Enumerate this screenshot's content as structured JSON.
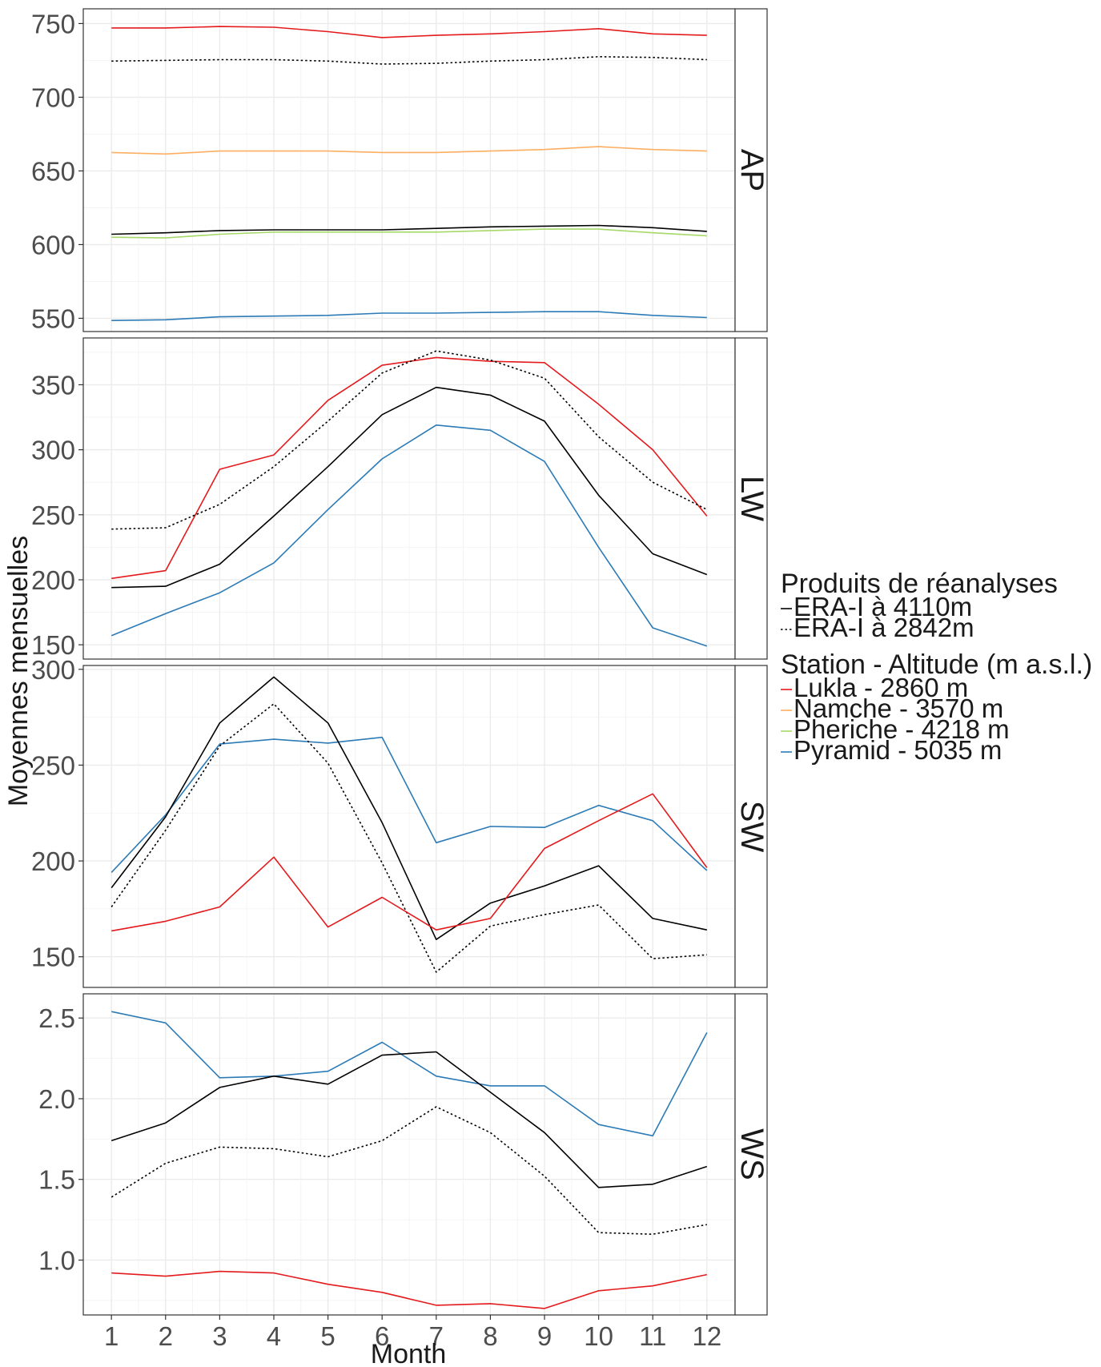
{
  "chart_data": {
    "type": "line",
    "xlabel": "Month",
    "ylabel": "Moyennes mensuelles",
    "x": [
      1,
      2,
      3,
      4,
      5,
      6,
      7,
      8,
      9,
      10,
      11,
      12
    ],
    "legend": {
      "placement": "right",
      "groups": [
        {
          "title": "Produits de réanalyses",
          "entries": [
            {
              "label": "ERA-I à 4110m",
              "series": "era_4110",
              "color": "#000000",
              "dash": "solid"
            },
            {
              "label": "ERA-I à 2842m",
              "series": "era_2842",
              "color": "#000000",
              "dash": "dotted"
            }
          ]
        },
        {
          "title": "Station - Altitude (m a.s.l.)",
          "entries": [
            {
              "label": "Lukla - 2860 m",
              "series": "lukla",
              "color": "#e41a1c",
              "dash": "solid"
            },
            {
              "label": "Namche - 3570 m",
              "series": "namche",
              "color": "#fdae61",
              "dash": "solid"
            },
            {
              "label": "Pheriche - 4218 m",
              "series": "pheriche",
              "color": "#a6d96a",
              "dash": "solid"
            },
            {
              "label": "Pyramid - 5035 m",
              "series": "pyramid",
              "color": "#2c7bb6",
              "dash": "solid"
            }
          ]
        }
      ]
    },
    "panels": [
      {
        "strip": "AP",
        "ylim": [
          541,
          760
        ],
        "yticks": [
          550,
          600,
          650,
          700,
          750
        ],
        "ytick_labels": [
          "550",
          "600",
          "650",
          "700",
          "750"
        ],
        "series": [
          {
            "id": "lukla",
            "color": "#e41a1c",
            "dash": "solid",
            "values": [
              747,
              747,
              748,
              747.5,
              744.5,
              740.5,
              742,
              743,
              744.5,
              746.5,
              743,
              742
            ]
          },
          {
            "id": "era_2842",
            "color": "#000000",
            "dash": "dotted",
            "values": [
              724.5,
              725,
              725.5,
              725.5,
              724.5,
              722.5,
              723,
              724.5,
              725.5,
              727.5,
              727,
              725.5
            ]
          },
          {
            "id": "namche",
            "color": "#fdae61",
            "dash": "solid",
            "values": [
              662.5,
              661.5,
              663.5,
              663.5,
              663.5,
              662.5,
              662.5,
              663.5,
              664.5,
              666.5,
              664.5,
              663.5
            ]
          },
          {
            "id": "era_4110",
            "color": "#000000",
            "dash": "solid",
            "values": [
              607,
              608,
              609.5,
              610,
              610,
              610,
              611,
              612,
              612.5,
              613,
              611.5,
              609
            ]
          },
          {
            "id": "pheriche",
            "color": "#a6d96a",
            "dash": "solid",
            "values": [
              605,
              604.5,
              607,
              608.5,
              608.5,
              608.5,
              608.5,
              609.5,
              610.5,
              610.5,
              608,
              606
            ]
          },
          {
            "id": "pyramid",
            "color": "#2c7bb6",
            "dash": "solid",
            "values": [
              548.5,
              549,
              551,
              551.5,
              552,
              553.5,
              553.5,
              554,
              554.5,
              554.5,
              552,
              550.5
            ]
          }
        ]
      },
      {
        "strip": "LW",
        "ylim": [
          139,
          386
        ],
        "yticks": [
          150,
          200,
          250,
          300,
          350
        ],
        "ytick_labels": [
          "150",
          "200",
          "250",
          "300",
          "350"
        ],
        "series": [
          {
            "id": "lukla",
            "color": "#e41a1c",
            "dash": "solid",
            "values": [
              201,
              207,
              285,
              296,
              338,
              365,
              371,
              368,
              367,
              335,
              300,
              249
            ]
          },
          {
            "id": "era_2842",
            "color": "#000000",
            "dash": "dotted",
            "values": [
              239,
              240,
              258,
              287,
              322,
              359,
              376,
              369,
              355,
              310,
              275,
              254
            ]
          },
          {
            "id": "era_4110",
            "color": "#000000",
            "dash": "solid",
            "values": [
              194,
              195,
              212,
              249,
              287,
              327,
              348,
              342,
              322,
              265,
              220,
              204
            ]
          },
          {
            "id": "pyramid",
            "color": "#2c7bb6",
            "dash": "solid",
            "values": [
              157,
              174,
              190,
              213,
              254,
              293,
              319,
              315,
              291,
              225,
              163,
              149
            ]
          }
        ]
      },
      {
        "strip": "SW",
        "ylim": [
          134,
          302
        ],
        "yticks": [
          150,
          200,
          250,
          300
        ],
        "ytick_labels": [
          "150",
          "200",
          "250",
          "300"
        ],
        "series": [
          {
            "id": "pyramid",
            "color": "#2c7bb6",
            "dash": "solid",
            "values": [
              194,
              224,
              261,
              263.5,
              261.5,
              264.5,
              209.5,
              218,
              217.5,
              229,
              221,
              195
            ]
          },
          {
            "id": "era_4110",
            "color": "#000000",
            "dash": "solid",
            "values": [
              186,
              223,
              272,
              296,
              272,
              220,
              159,
              178,
              187,
              197.5,
              170,
              164
            ]
          },
          {
            "id": "era_2842",
            "color": "#000000",
            "dash": "dotted",
            "values": [
              176,
              216,
              260,
              282,
              251,
              199,
              142,
              166,
              172,
              177,
              149,
              151
            ]
          },
          {
            "id": "lukla",
            "color": "#e41a1c",
            "dash": "solid",
            "values": [
              163.5,
              168.5,
              176,
              202,
              165.5,
              181,
              164,
              170,
              206.5,
              221,
              235,
              196.5
            ]
          }
        ]
      },
      {
        "strip": "WS",
        "ylim": [
          0.66,
          2.65
        ],
        "yticks": [
          1.0,
          1.5,
          2.0,
          2.5
        ],
        "ytick_labels": [
          "1.0",
          "1.5",
          "2.0",
          "2.5"
        ],
        "series": [
          {
            "id": "pyramid",
            "color": "#2c7bb6",
            "dash": "solid",
            "values": [
              2.54,
              2.47,
              2.13,
              2.14,
              2.17,
              2.35,
              2.14,
              2.08,
              2.08,
              1.84,
              1.77,
              2.41
            ]
          },
          {
            "id": "era_4110",
            "color": "#000000",
            "dash": "solid",
            "values": [
              1.74,
              1.85,
              2.07,
              2.14,
              2.09,
              2.27,
              2.29,
              2.04,
              1.79,
              1.45,
              1.47,
              1.58
            ]
          },
          {
            "id": "era_2842",
            "color": "#000000",
            "dash": "dotted",
            "values": [
              1.39,
              1.6,
              1.7,
              1.69,
              1.64,
              1.74,
              1.95,
              1.79,
              1.52,
              1.17,
              1.16,
              1.22
            ]
          },
          {
            "id": "lukla",
            "color": "#e41a1c",
            "dash": "solid",
            "values": [
              0.92,
              0.9,
              0.93,
              0.92,
              0.85,
              0.8,
              0.72,
              0.73,
              0.7,
              0.81,
              0.84,
              0.91
            ]
          }
        ]
      }
    ]
  }
}
